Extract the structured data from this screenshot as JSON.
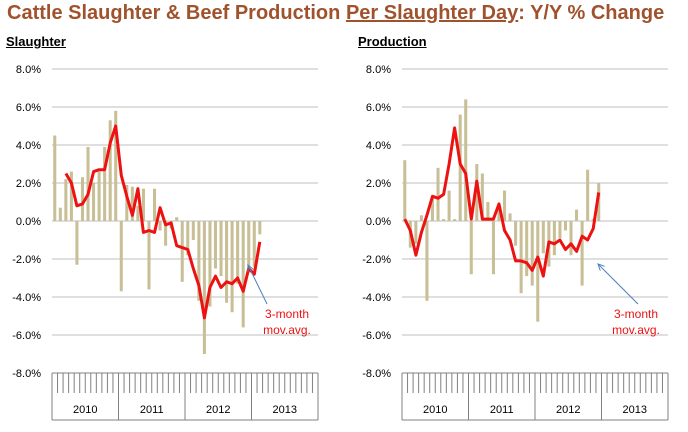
{
  "title": {
    "part1": "Cattle Slaughter & Beef Production ",
    "part2": "Per Slaughter Day",
    "part3": ": Y/Y % Change"
  },
  "colors": {
    "title": "#a0522d",
    "bars": "#c8bf96",
    "line": "#ee1111",
    "annotation_text": "#ee1111",
    "arrow": "#4f81bd",
    "grid": "#bfbfbf"
  },
  "chart_data": [
    {
      "type": "bar",
      "title": "Slaughter",
      "ylim": [
        -8,
        8
      ],
      "yticks": [
        "8.0%",
        "6.0%",
        "4.0%",
        "2.0%",
        "0.0%",
        "-2.0%",
        "-4.0%",
        "-6.0%",
        "-8.0%"
      ],
      "year_labels": [
        "2010",
        "2011",
        "2012",
        "2013"
      ],
      "annotation": {
        "line1": "3-month",
        "line2": "mov.avg."
      },
      "series": [
        {
          "type": "bar",
          "values": [
            4.5,
            0.7,
            2.2,
            2.6,
            -2.3,
            2.3,
            3.9,
            2.0,
            2.6,
            3.9,
            5.3,
            5.8,
            -3.7,
            1.9,
            1.8,
            0.8,
            1.7,
            -3.6,
            1.7,
            -0.5,
            -1.3,
            -0.4,
            0.2,
            -3.2,
            -1.8,
            -1.0,
            -4.2,
            -7.0,
            -4.5,
            -2.5,
            -2.9,
            -4.3,
            -4.8,
            -3.3,
            -5.6,
            -2.7,
            -2.4,
            -0.7
          ]
        },
        {
          "type": "line",
          "values": [
            2.5,
            2.0,
            0.8,
            0.9,
            1.4,
            2.6,
            2.7,
            2.7,
            4.1,
            5.0,
            2.4,
            1.3,
            0.3,
            1.7,
            -0.6,
            -0.5,
            -0.6,
            0.7,
            -0.2,
            -0.1,
            -1.3,
            -1.4,
            -1.5,
            -2.5,
            -3.4,
            -5.1,
            -3.5,
            -2.9,
            -3.5,
            -3.2,
            -3.3,
            -3.0,
            -3.7,
            -2.5,
            -2.8,
            -1.1
          ]
        }
      ]
    },
    {
      "type": "bar",
      "title": "Production",
      "ylim": [
        -8,
        8
      ],
      "yticks": [
        "8.0%",
        "6.0%",
        "4.0%",
        "2.0%",
        "0.0%",
        "-2.0%",
        "-4.0%",
        "-6.0%",
        "-8.0%"
      ],
      "year_labels": [
        "2010",
        "2011",
        "2012",
        "2013"
      ],
      "annotation": {
        "line1": "3-month",
        "line2": "mov.avg."
      },
      "series": [
        {
          "type": "bar",
          "values": [
            3.2,
            -1.4,
            -1.2,
            0.3,
            -4.2,
            1.3,
            2.8,
            0.1,
            1.6,
            0.1,
            5.6,
            6.4,
            -2.8,
            3.0,
            2.5,
            1.0,
            -2.8,
            0.9,
            1.6,
            0.4,
            -1.3,
            -3.8,
            -2.9,
            -3.4,
            -5.3,
            -1.7,
            -2.4,
            -1.8,
            -0.9,
            -0.5,
            -1.8,
            0.6,
            -3.4,
            2.7,
            0.1,
            2.0
          ]
        },
        {
          "type": "line",
          "values": [
            0.1,
            -0.5,
            -1.8,
            -0.6,
            0.3,
            1.3,
            1.2,
            1.4,
            3.0,
            4.9,
            3.0,
            2.5,
            0.1,
            2.1,
            0.1,
            0.1,
            0.1,
            0.9,
            -0.5,
            -1.0,
            -2.1,
            -2.1,
            -2.2,
            -2.6,
            -1.9,
            -2.9,
            -1.1,
            -1.2,
            -1.0,
            -1.5,
            -1.2,
            -1.6,
            -0.8,
            -1.0,
            -0.4,
            1.5
          ]
        }
      ]
    }
  ]
}
